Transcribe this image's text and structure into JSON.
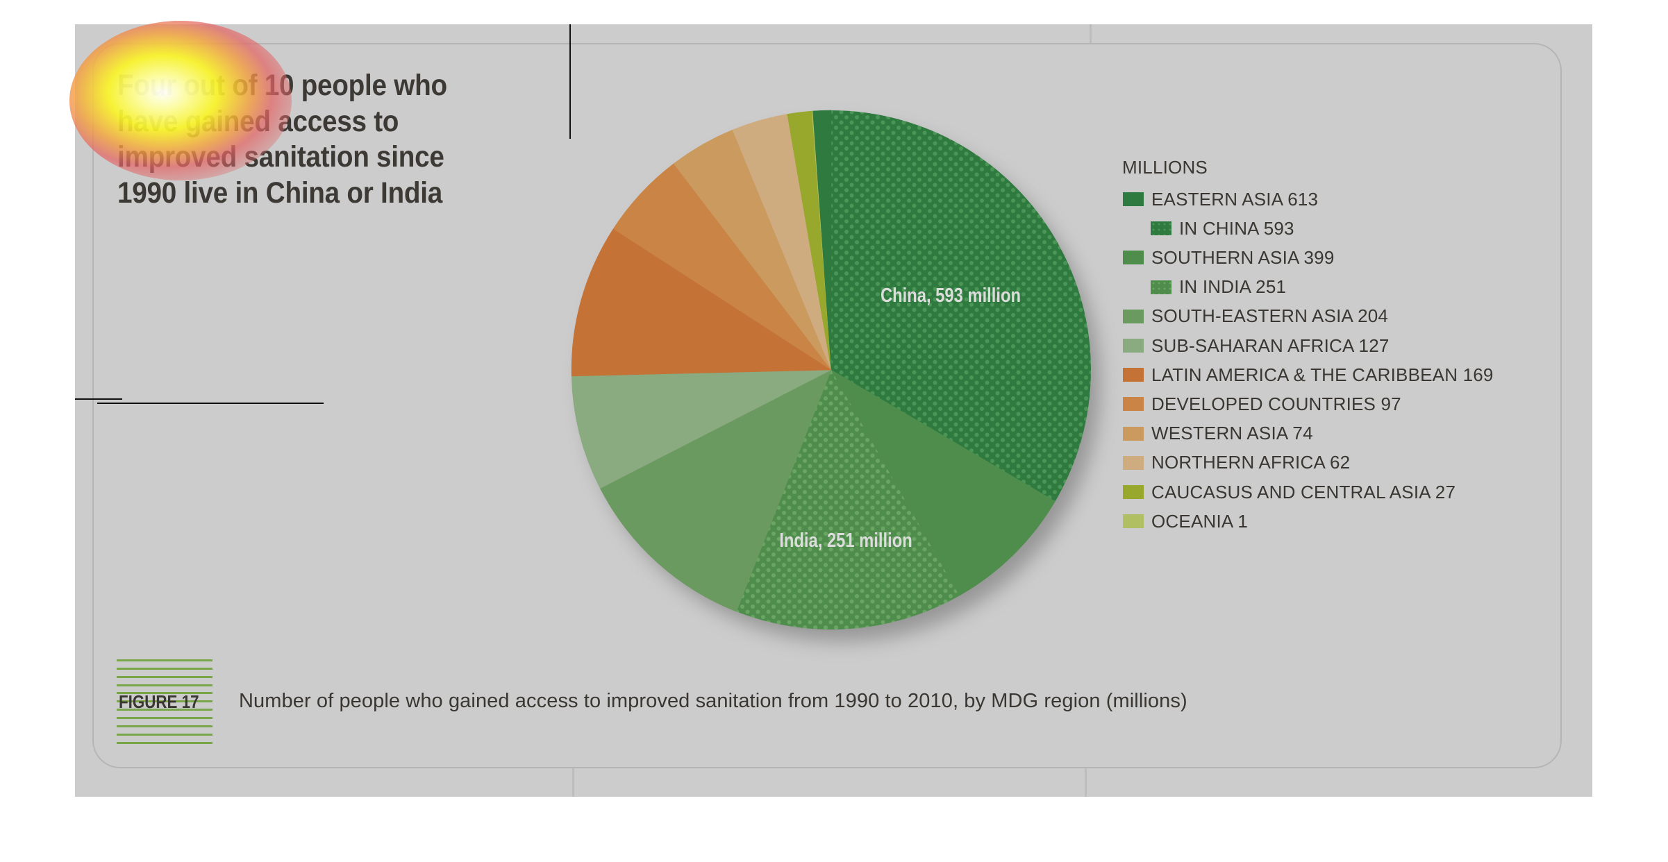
{
  "headline": {
    "lines": [
      "Four out of 10 people who",
      "have gained access to",
      "improved sanitation since",
      "1990 live in China or India"
    ]
  },
  "figure": {
    "label": "FIGURE 17",
    "caption": "Number of people who gained access to improved sanitation from 1990 to 2010, by MDG region (millions)"
  },
  "colors": {
    "background": "#cccccc",
    "figure_accent": "#7aa64a",
    "text": "#3a3733"
  },
  "chart_data": {
    "type": "pie",
    "title": "Number of people who gained access to improved sanitation from 1990 to 2010, by MDG region (millions)",
    "unit_label": "MILLIONS",
    "start": "12 o'clock, clockwise",
    "legend_position": "right",
    "legend": [
      {
        "label": "EASTERN ASIA 613",
        "region": "Eastern Asia",
        "value": 613,
        "color": "#2e7a3f",
        "pattern": "solid",
        "indent": false
      },
      {
        "label": "IN CHINA 593",
        "region": "China",
        "value": 593,
        "color": "#2e7a3f",
        "pattern": "dotted",
        "indent": true
      },
      {
        "label": "SOUTHERN ASIA 399",
        "region": "Southern Asia",
        "value": 399,
        "color": "#4f8d4c",
        "pattern": "solid",
        "indent": false
      },
      {
        "label": "IN INDIA 251",
        "region": "India",
        "value": 251,
        "color": "#4f8d4c",
        "pattern": "dotted",
        "indent": true
      },
      {
        "label": "SOUTH-EASTERN ASIA 204",
        "region": "South-Eastern Asia",
        "value": 204,
        "color": "#6b9a60",
        "pattern": "solid",
        "indent": false
      },
      {
        "label": "SUB-SAHARAN AFRICA 127",
        "region": "Sub-Saharan Africa",
        "value": 127,
        "color": "#8aaa80",
        "pattern": "solid",
        "indent": false
      },
      {
        "label": "LATIN AMERICA & THE CARIBBEAN 169",
        "region": "Latin America & the Caribbean",
        "value": 169,
        "color": "#c47236",
        "pattern": "solid",
        "indent": false
      },
      {
        "label": "DEVELOPED COUNTRIES 97",
        "region": "Developed countries",
        "value": 97,
        "color": "#c98446",
        "pattern": "solid",
        "indent": false
      },
      {
        "label": "WESTERN ASIA 74",
        "region": "Western Asia",
        "value": 74,
        "color": "#cb9a5f",
        "pattern": "solid",
        "indent": false
      },
      {
        "label": "NORTHERN AFRICA 62",
        "region": "Northern Africa",
        "value": 62,
        "color": "#cfac80",
        "pattern": "solid",
        "indent": false
      },
      {
        "label": "CAUCASUS AND CENTRAL ASIA 27",
        "region": "Caucasus and Central Asia",
        "value": 27,
        "color": "#97a82d",
        "pattern": "solid",
        "indent": false
      },
      {
        "label": "OCEANIA 1",
        "region": "Oceania",
        "value": 1,
        "color": "#b0bf62",
        "pattern": "solid",
        "indent": false
      }
    ],
    "slices": [
      {
        "name": "China",
        "value": 593,
        "color": "#2e7a3f",
        "pattern": "dotted",
        "label": "China, 593 million"
      },
      {
        "name": "Southern Asia (excl. India)",
        "value": 148,
        "color": "#4f8d4c",
        "pattern": "solid"
      },
      {
        "name": "India",
        "value": 251,
        "color": "#4f8d4c",
        "pattern": "dotted",
        "label": "India, 251 million"
      },
      {
        "name": "South-Eastern Asia",
        "value": 204,
        "color": "#6b9a60",
        "pattern": "solid"
      },
      {
        "name": "Sub-Saharan Africa",
        "value": 127,
        "color": "#8aaa80",
        "pattern": "solid"
      },
      {
        "name": "Latin America & the Caribbean",
        "value": 169,
        "color": "#c47236",
        "pattern": "solid"
      },
      {
        "name": "Developed countries",
        "value": 97,
        "color": "#c98446",
        "pattern": "solid"
      },
      {
        "name": "Western Asia",
        "value": 74,
        "color": "#cb9a5f",
        "pattern": "solid"
      },
      {
        "name": "Northern Africa",
        "value": 62,
        "color": "#cfac80",
        "pattern": "solid"
      },
      {
        "name": "Caucasus and Central Asia",
        "value": 27,
        "color": "#97a82d",
        "pattern": "solid"
      },
      {
        "name": "Oceania",
        "value": 1,
        "color": "#b0bf62",
        "pattern": "solid"
      },
      {
        "name": "Eastern Asia (excl. China)",
        "value": 20,
        "color": "#2e7a3f",
        "pattern": "solid"
      }
    ]
  }
}
